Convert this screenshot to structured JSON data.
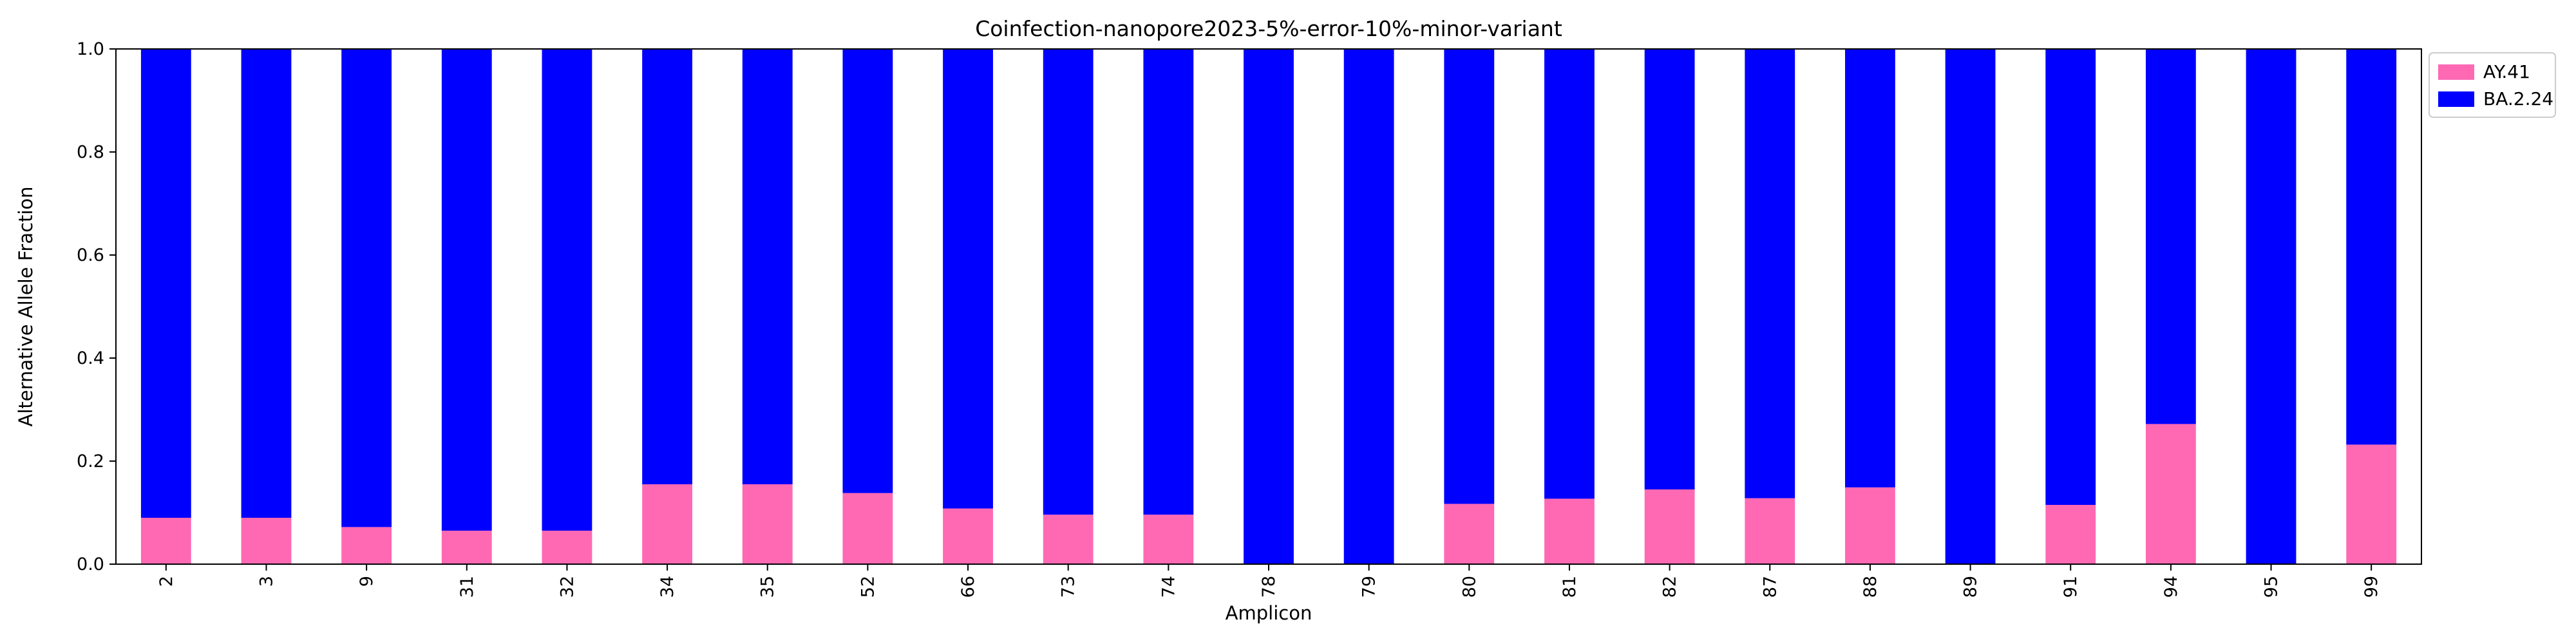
{
  "chart_data": {
    "type": "bar",
    "stacked": true,
    "title": "Coinfection-nanopore2023-5%-error-10%-minor-variant",
    "xlabel": "Amplicon",
    "ylabel": "Alternative Allele Fraction",
    "ylim": [
      0,
      1
    ],
    "yticks": [
      "0.0",
      "0.2",
      "0.4",
      "0.6",
      "0.8",
      "1.0"
    ],
    "grid": false,
    "legend_position": "upper-right-outside",
    "categories": [
      "2",
      "3",
      "9",
      "31",
      "32",
      "34",
      "35",
      "52",
      "66",
      "73",
      "74",
      "78",
      "79",
      "80",
      "81",
      "82",
      "87",
      "88",
      "89",
      "91",
      "94",
      "95",
      "99"
    ],
    "series": [
      {
        "name": "AY.41",
        "color": "#ff69b4",
        "values": [
          0.09,
          0.09,
          0.072,
          0.065,
          0.065,
          0.155,
          0.155,
          0.138,
          0.108,
          0.096,
          0.096,
          0.0,
          0.0,
          0.117,
          0.127,
          0.145,
          0.128,
          0.149,
          0.0,
          0.115,
          0.272,
          0.0,
          0.232
        ]
      },
      {
        "name": "BA.2.24",
        "color": "#0000ff",
        "values": [
          0.91,
          0.91,
          0.928,
          0.935,
          0.935,
          0.845,
          0.845,
          0.862,
          0.892,
          0.904,
          0.904,
          1.0,
          1.0,
          0.883,
          0.873,
          0.855,
          0.872,
          0.851,
          1.0,
          0.885,
          0.728,
          1.0,
          0.768
        ]
      }
    ]
  }
}
